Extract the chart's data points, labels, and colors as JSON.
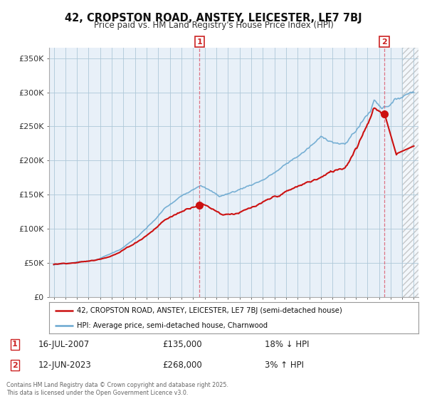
{
  "title": "42, CROPSTON ROAD, ANSTEY, LEICESTER, LE7 7BJ",
  "subtitle": "Price paid vs. HM Land Registry's House Price Index (HPI)",
  "background_color": "#ffffff",
  "plot_bg_color": "#ddeeff",
  "grid_color": "#aec8d8",
  "ytick_labels": [
    "£0",
    "£50K",
    "£100K",
    "£150K",
    "£200K",
    "£250K",
    "£300K",
    "£350K"
  ],
  "yticks": [
    0,
    50000,
    100000,
    150000,
    200000,
    250000,
    300000,
    350000
  ],
  "xlim_start": 1994.6,
  "xlim_end": 2026.4,
  "ylim_min": 0,
  "ylim_max": 365000,
  "hpi_color": "#6aa8d0",
  "price_color": "#cc1111",
  "sale1_year": 2007.54,
  "sale2_year": 2023.45,
  "sale1_date": "16-JUL-2007",
  "sale1_price": 135000,
  "sale1_hpi_pct": "18% ↓ HPI",
  "sale2_date": "12-JUN-2023",
  "sale2_price": 268000,
  "sale2_hpi_pct": "3% ↑ HPI",
  "vline_color": "#dd6677",
  "number_box_color": "#cc2222",
  "legend_label_price": "42, CROPSTON ROAD, ANSTEY, LEICESTER, LE7 7BJ (semi-detached house)",
  "legend_label_hpi": "HPI: Average price, semi-detached house, Charnwood",
  "footer": "Contains HM Land Registry data © Crown copyright and database right 2025.\nThis data is licensed under the Open Government Licence v3.0.",
  "hatch_start_year": 2025.0
}
